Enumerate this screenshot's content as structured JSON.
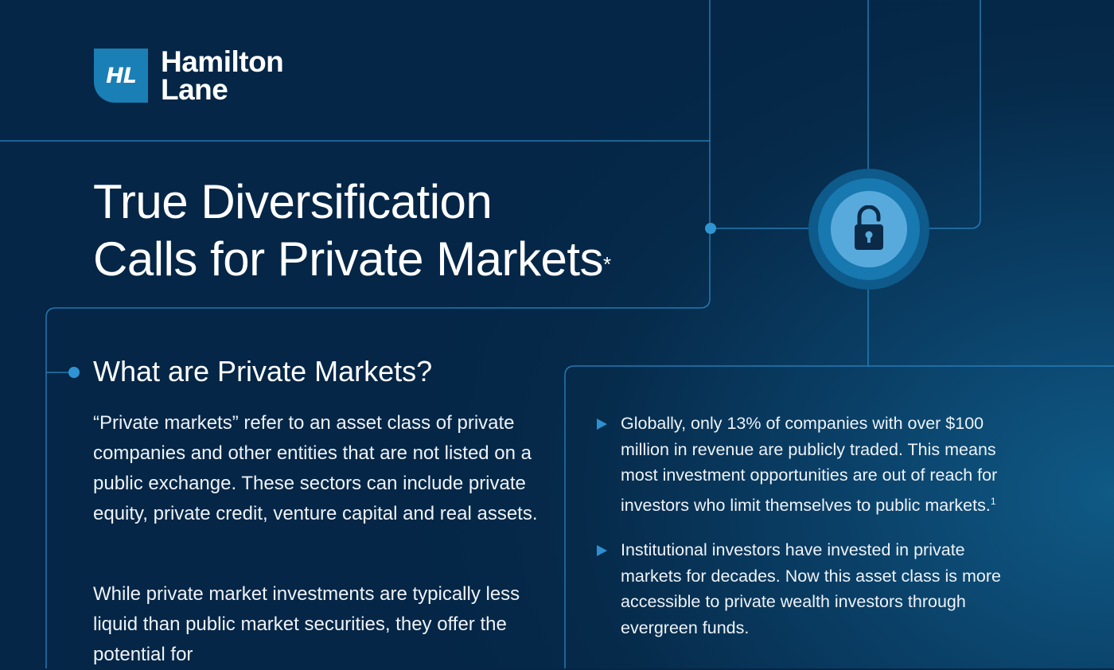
{
  "brand": {
    "logo_mark": "HL",
    "name_line1": "Hamilton",
    "name_line2": "Lane",
    "accent": "#1a7fb5"
  },
  "title": {
    "line1": "True Diversification",
    "line2": "Calls for Private Markets",
    "asterisk": "*"
  },
  "icon": {
    "name": "unlocked-padlock-icon"
  },
  "section": {
    "heading": "What are Private Markets?",
    "paragraphs": [
      "“Private markets” refer to an asset class of private companies and other entities that are not listed on a public exchange. These sectors can include private equity, private credit, venture capital and real assets.",
      "While private market investments are typically less liquid than public market securities, they offer the potential for"
    ],
    "bullets": [
      {
        "text": "Globally, only 13% of companies with over $100 million in revenue are publicly traded. This means most investment opportunities are out of reach for investors who limit themselves to public markets.",
        "footnote": "1"
      },
      {
        "text": "Institutional investors have invested in private markets for decades. Now this asset class is more accessible to private wealth investors through evergreen funds.",
        "footnote": ""
      }
    ]
  }
}
